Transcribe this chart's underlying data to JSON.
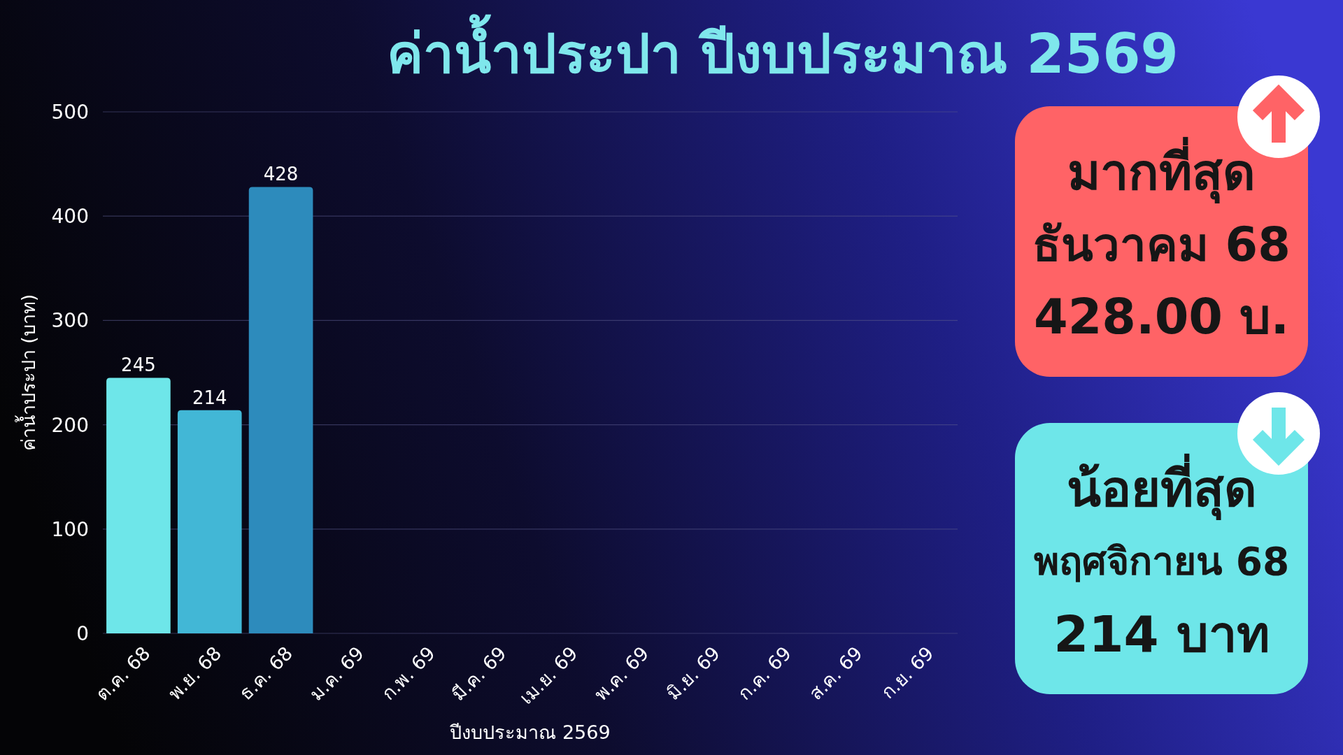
{
  "chart_data": [
    {
      "type": "bar",
      "title": "ค่าน้ำประปา ปีงบประมาณ 2569",
      "xlabel": "ปีงบประมาณ 2569",
      "ylabel": "ค่าน้ำประปา (บาท)",
      "categories": [
        "ต.ค. 68",
        "พ.ย. 68",
        "ธ.ค. 68",
        "ม.ค. 69",
        "ก.พ. 69",
        "มี.ค. 69",
        "เม.ย. 69",
        "พ.ค. 69",
        "มิ.ย. 69",
        "ก.ค. 69",
        "ส.ค. 69",
        "ก.ย. 69"
      ],
      "values": [
        245,
        214,
        428,
        null,
        null,
        null,
        null,
        null,
        null,
        null,
        null,
        null
      ],
      "colors": [
        "#6ee6e9",
        "#42b7d6",
        "#2d8bbc",
        null,
        null,
        null,
        null,
        null,
        null,
        null,
        null,
        null
      ],
      "ylim": [
        0,
        500
      ],
      "yticks": [
        0,
        100,
        200,
        300,
        400,
        500
      ],
      "grid": "y",
      "data_labels": true
    },
    {
      "type": "other",
      "title": "มากที่สุด",
      "annotations": [
        "ธันวาคม 68",
        "428.00 บ."
      ],
      "color": "#ff6366"
    },
    {
      "type": "other",
      "title": "น้อยที่สุด",
      "annotations": [
        "พฤศจิกายน 68",
        "214 บาท"
      ],
      "color": "#6ee6e9"
    }
  ]
}
